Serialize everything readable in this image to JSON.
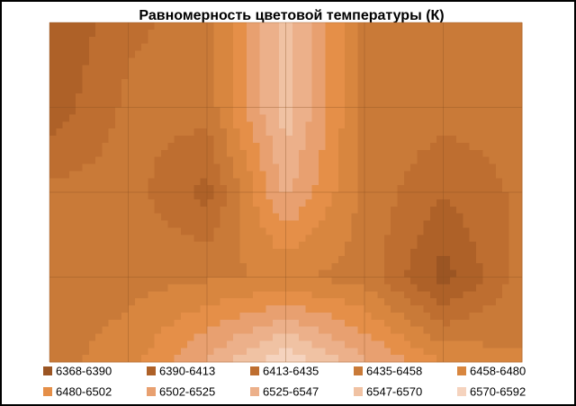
{
  "chart_data": {
    "type": "contour",
    "title": "Равномерность  цветовой температуры (К)",
    "grid_values": [
      [
        6390,
        6430,
        6445,
        6560,
        6450,
        6445,
        6445
      ],
      [
        6400,
        6440,
        6445,
        6560,
        6450,
        6445,
        6445
      ],
      [
        6440,
        6445,
        6405,
        6530,
        6450,
        6415,
        6440
      ],
      [
        6445,
        6450,
        6455,
        6460,
        6450,
        6380,
        6445
      ],
      [
        6450,
        6470,
        6530,
        6592,
        6530,
        6480,
        6460
      ]
    ],
    "levels": [
      6368,
      6390,
      6413,
      6435,
      6458,
      6480,
      6502,
      6525,
      6547,
      6570,
      6592
    ],
    "series": [
      {
        "name": "6368-6390",
        "color": "#9b5523"
      },
      {
        "name": "6390-6413",
        "color": "#ae6128"
      },
      {
        "name": "6413-6435",
        "color": "#be6e30"
      },
      {
        "name": "6435-6458",
        "color": "#c97a38"
      },
      {
        "name": "6458-6480",
        "color": "#d8863f"
      },
      {
        "name": "6480-6502",
        "color": "#e58f48"
      },
      {
        "name": "6502-6525",
        "color": "#e8a070"
      },
      {
        "name": "6525-6547",
        "color": "#ecb08a"
      },
      {
        "name": "6547-6570",
        "color": "#f0c2a3"
      },
      {
        "name": "6570-6592",
        "color": "#f5d3be"
      }
    ],
    "grid": true
  }
}
